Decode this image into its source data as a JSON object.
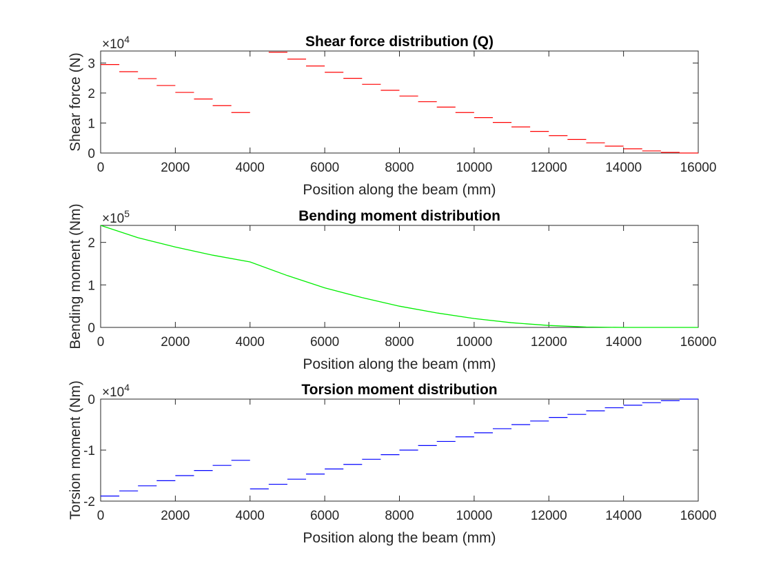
{
  "chart_data": [
    {
      "type": "line",
      "style": "step",
      "title": "Shear force distribution (Q)",
      "xlabel": "Position along the beam (mm)",
      "ylabel": "Shear force (N)",
      "y_multiplier": "×10",
      "y_exponent": "4",
      "xlim": [
        0,
        16000
      ],
      "ylim": [
        0,
        34000
      ],
      "xticks": [
        0,
        2000,
        4000,
        6000,
        8000,
        10000,
        12000,
        14000,
        16000
      ],
      "xtick_labels": [
        "0",
        "2000",
        "4000",
        "6000",
        "8000",
        "10000",
        "12000",
        "14000",
        "16000"
      ],
      "yticks": [
        0,
        10000,
        20000,
        30000
      ],
      "ytick_labels": [
        "0",
        "1",
        "2",
        "3"
      ],
      "color": "#ff0000",
      "segment_width": 500,
      "series": [
        {
          "x": [
            0,
            500,
            1000,
            1500,
            2000,
            2500,
            3000,
            3500,
            4000,
            4500,
            5000,
            5500,
            6000,
            6500,
            7000,
            7500,
            8000,
            8500,
            9000,
            9500,
            10000,
            10500,
            11000,
            11500,
            12000,
            12500,
            13000,
            13500,
            14000,
            14500,
            15000,
            15500
          ],
          "values": [
            29500,
            27100,
            24800,
            22500,
            20200,
            18000,
            15800,
            13500,
            null,
            33600,
            31300,
            29000,
            26900,
            24900,
            22900,
            20900,
            19000,
            17100,
            15300,
            13500,
            11800,
            10200,
            8700,
            7200,
            5800,
            4500,
            3400,
            2300,
            1400,
            700,
            200,
            0
          ]
        }
      ]
    },
    {
      "type": "line",
      "title": "Bending moment distribution",
      "xlabel": "Position along the beam (mm)",
      "ylabel": "Bending moment (Nm)",
      "y_multiplier": "×10",
      "y_exponent": "5",
      "xlim": [
        0,
        16000
      ],
      "ylim": [
        0,
        240000
      ],
      "xticks": [
        0,
        2000,
        4000,
        6000,
        8000,
        10000,
        12000,
        14000,
        16000
      ],
      "xtick_labels": [
        "0",
        "2000",
        "4000",
        "6000",
        "8000",
        "10000",
        "12000",
        "14000",
        "16000"
      ],
      "yticks": [
        0,
        100000,
        200000
      ],
      "ytick_labels": [
        "0",
        "1",
        "2"
      ],
      "color": "#00ee00",
      "series": [
        {
          "x": [
            0,
            1000,
            2000,
            3000,
            4000,
            5000,
            6000,
            7000,
            8000,
            9000,
            10000,
            11000,
            12000,
            13000,
            14000,
            15000,
            16000
          ],
          "values": [
            240000,
            211000,
            189000,
            170000,
            154000,
            122000,
            93000,
            70000,
            50000,
            34000,
            21000,
            11000,
            4500,
            1000,
            0,
            0,
            0
          ]
        }
      ]
    },
    {
      "type": "line",
      "style": "step",
      "title": "Torsion moment distribution",
      "xlabel": "Position along the beam (mm)",
      "ylabel": "Torsion moment (Nm)",
      "y_multiplier": "×10",
      "y_exponent": "4",
      "xlim": [
        0,
        16000
      ],
      "ylim": [
        -20000,
        0
      ],
      "xticks": [
        0,
        2000,
        4000,
        6000,
        8000,
        10000,
        12000,
        14000,
        16000
      ],
      "xtick_labels": [
        "0",
        "2000",
        "4000",
        "6000",
        "8000",
        "10000",
        "12000",
        "14000",
        "16000"
      ],
      "yticks": [
        -20000,
        -10000,
        0
      ],
      "ytick_labels": [
        "-2",
        "-1",
        "0"
      ],
      "color": "#0000ff",
      "segment_width": 500,
      "series": [
        {
          "x": [
            0,
            500,
            1000,
            1500,
            2000,
            2500,
            3000,
            3500,
            4000,
            4500,
            5000,
            5500,
            6000,
            6500,
            7000,
            7500,
            8000,
            8500,
            9000,
            9500,
            10000,
            10500,
            11000,
            11500,
            12000,
            12500,
            13000,
            13500,
            14000,
            14500,
            15000,
            15500
          ],
          "values": [
            -19000,
            -18000,
            -17000,
            -16000,
            -15000,
            -14000,
            -13000,
            -12000,
            -17600,
            -16700,
            -15700,
            -14700,
            -13700,
            -12800,
            -11800,
            -10900,
            -10000,
            -9100,
            -8300,
            -7400,
            -6600,
            -5800,
            -5000,
            -4300,
            -3600,
            -3000,
            -2300,
            -1700,
            -1200,
            -700,
            -300,
            0
          ]
        }
      ]
    }
  ]
}
